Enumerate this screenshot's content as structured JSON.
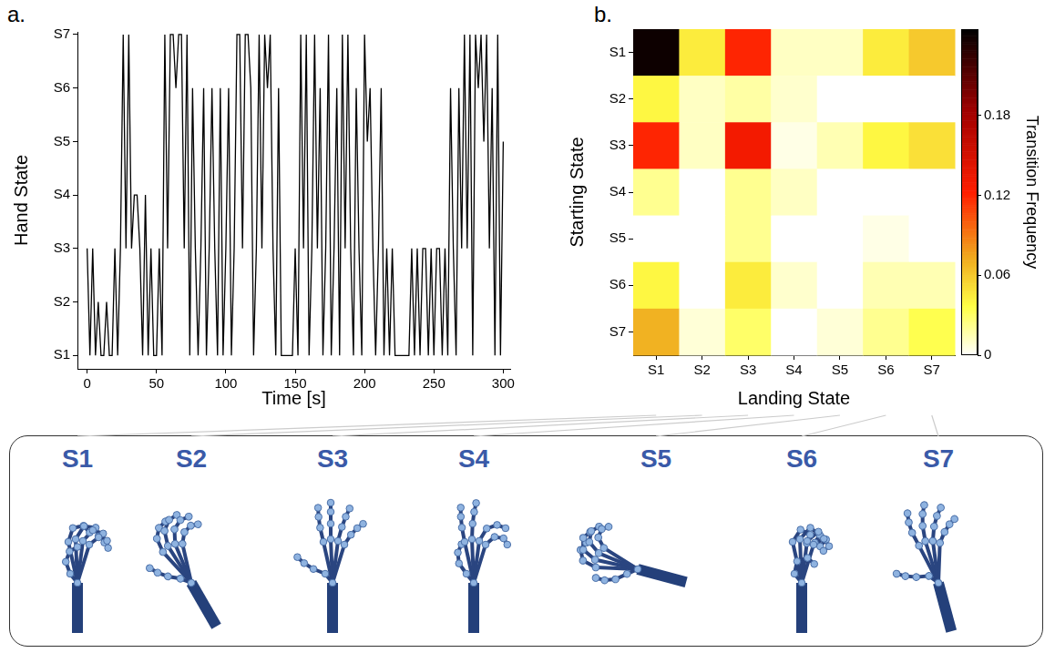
{
  "chart_data": [
    {
      "type": "line",
      "panel_label": "a.",
      "x_label": "Time [s]",
      "y_label": "Hand State",
      "x": [
        0,
        2,
        4,
        6,
        8,
        10,
        12,
        14,
        16,
        18,
        20,
        22,
        24,
        26,
        28,
        30,
        32,
        34,
        36,
        38,
        40,
        42,
        44,
        46,
        48,
        50,
        52,
        54,
        56,
        58,
        60,
        62,
        64,
        66,
        68,
        70,
        72,
        74,
        76,
        78,
        80,
        82,
        84,
        86,
        88,
        90,
        92,
        94,
        96,
        98,
        100,
        102,
        104,
        106,
        108,
        110,
        112,
        114,
        116,
        118,
        120,
        122,
        124,
        126,
        128,
        130,
        132,
        134,
        136,
        138,
        140,
        142,
        144,
        146,
        148,
        150,
        152,
        154,
        156,
        158,
        160,
        162,
        164,
        166,
        168,
        170,
        172,
        174,
        176,
        178,
        180,
        182,
        184,
        186,
        188,
        190,
        192,
        194,
        196,
        198,
        200,
        202,
        204,
        206,
        208,
        210,
        212,
        214,
        216,
        218,
        220,
        222,
        224,
        226,
        228,
        230,
        232,
        234,
        236,
        238,
        240,
        242,
        244,
        246,
        248,
        250,
        252,
        254,
        256,
        258,
        260,
        262,
        264,
        266,
        268,
        270,
        272,
        274,
        276,
        278,
        280,
        282,
        284,
        286,
        288,
        290,
        292,
        294,
        296,
        298,
        300
      ],
      "values": [
        3,
        1,
        3,
        1,
        2,
        1,
        1,
        2,
        1,
        1,
        3,
        1,
        3,
        7,
        3,
        7,
        3,
        4,
        4,
        3,
        1,
        4,
        1,
        3,
        1,
        1,
        3,
        1,
        7,
        3,
        7,
        7,
        6,
        7,
        7,
        3,
        7,
        1,
        6,
        3,
        1,
        3,
        6,
        1,
        3,
        6,
        3,
        1,
        6,
        1,
        3,
        6,
        1,
        3,
        7,
        7,
        3,
        7,
        7,
        6,
        1,
        3,
        7,
        3,
        7,
        6,
        7,
        3,
        1,
        6,
        1,
        1,
        1,
        1,
        1,
        3,
        1,
        7,
        3,
        7,
        1,
        3,
        7,
        3,
        6,
        1,
        3,
        7,
        1,
        3,
        6,
        1,
        7,
        3,
        7,
        3,
        1,
        6,
        3,
        1,
        7,
        5,
        6,
        3,
        1,
        3,
        6,
        1,
        3,
        1,
        3,
        1,
        1,
        1,
        1,
        1,
        1,
        3,
        1,
        3,
        1,
        3,
        3,
        1,
        3,
        1,
        3,
        3,
        1,
        3,
        1,
        6,
        3,
        1,
        6,
        3,
        7,
        3,
        7,
        1,
        7,
        6,
        7,
        5,
        7,
        3,
        6,
        1,
        7,
        1,
        5
      ],
      "color": "#000000",
      "xlim": [
        -7,
        305
      ],
      "xticks": [
        0,
        50,
        100,
        150,
        200,
        250,
        300
      ],
      "ylim": [
        0.75,
        7.05
      ],
      "yticks": [
        {
          "value": 1,
          "label": "S1"
        },
        {
          "value": 2,
          "label": "S2"
        },
        {
          "value": 3,
          "label": "S3"
        },
        {
          "value": 4,
          "label": "S4"
        },
        {
          "value": 5,
          "label": "S5"
        },
        {
          "value": 6,
          "label": "S6"
        },
        {
          "value": 7,
          "label": "S7"
        }
      ],
      "grid": false
    },
    {
      "type": "heatmap",
      "panel_label": "b.",
      "x_label": "Landing State",
      "y_label": "Starting State",
      "x_categories": [
        "S1",
        "S2",
        "S3",
        "S4",
        "S5",
        "S6",
        "S7"
      ],
      "y_categories": [
        "S1",
        "S2",
        "S3",
        "S4",
        "S5",
        "S6",
        "S7"
      ],
      "cells": [
        [
          0.24,
          0.045,
          0.12,
          0.012,
          0.012,
          0.045,
          0.06
        ],
        [
          0.04,
          0.012,
          0.018,
          0.01,
          0,
          0,
          0
        ],
        [
          0.12,
          0.012,
          0.13,
          0.005,
          0.015,
          0.04,
          0.05
        ],
        [
          0.022,
          0,
          0.022,
          0.012,
          0,
          0,
          0
        ],
        [
          0,
          0,
          0.022,
          0,
          0,
          0.005,
          0
        ],
        [
          0.04,
          0,
          0.045,
          0.01,
          0,
          0.015,
          0.015
        ],
        [
          0.07,
          0.008,
          0.03,
          0,
          0.008,
          0.022,
          0.035
        ]
      ],
      "colorbar": {
        "label": "Transition Frequency",
        "range": [
          0,
          0.245
        ],
        "ticks": [
          0,
          0.06,
          0.12,
          0.18
        ]
      }
    }
  ],
  "hand_states": {
    "labels": [
      "S1",
      "S2",
      "S3",
      "S4",
      "S5",
      "S6",
      "S7"
    ]
  }
}
